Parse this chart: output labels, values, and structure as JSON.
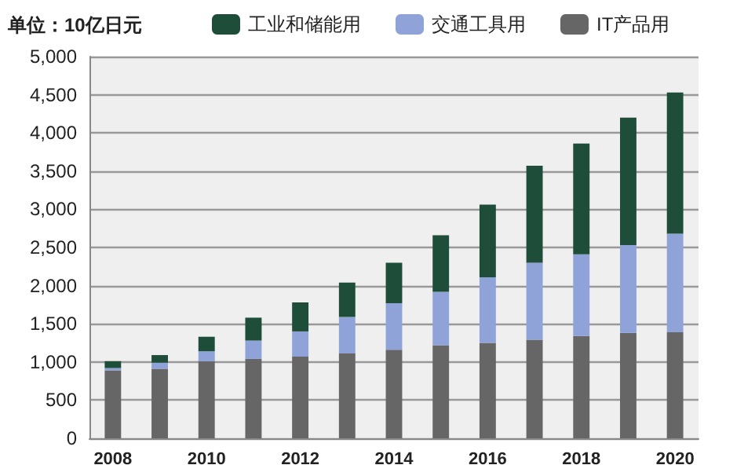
{
  "chart_data": {
    "type": "bar",
    "stacked": true,
    "ylabel": "单位：10亿日元",
    "categories": [
      "2008",
      null,
      "2010",
      null,
      "2012",
      null,
      "2014",
      null,
      "2016",
      null,
      "2018",
      null,
      "2020"
    ],
    "series": [
      {
        "name": "IT产品用",
        "color": "#666666",
        "values": [
          890,
          910,
          1010,
          1040,
          1070,
          1110,
          1160,
          1220,
          1250,
          1290,
          1340,
          1380,
          1390
        ]
      },
      {
        "name": "交通工具用",
        "color": "#8fa3d8",
        "values": [
          30,
          80,
          130,
          240,
          330,
          480,
          610,
          700,
          860,
          1010,
          1070,
          1150,
          1290
        ]
      },
      {
        "name": "工业和储能用",
        "color": "#1e4d3a",
        "values": [
          90,
          100,
          190,
          300,
          380,
          450,
          530,
          740,
          950,
          1270,
          1450,
          1670,
          1850
        ]
      }
    ],
    "ylim": [
      0,
      5000
    ],
    "yticks": [
      0,
      500,
      {
        "value": 1000,
        "label": "1,000"
      },
      {
        "value": 1500,
        "label": "1,500"
      },
      {
        "value": 2000,
        "label": "2,000"
      },
      {
        "value": 2500,
        "label": "2,500"
      },
      {
        "value": 3000,
        "label": "3,000"
      },
      {
        "value": 3500,
        "label": "3,500"
      },
      {
        "value": 4000,
        "label": "4,000"
      },
      {
        "value": 4500,
        "label": "4,500"
      },
      {
        "value": 5000,
        "label": "5,000"
      }
    ],
    "grid": "y",
    "legend": "top"
  }
}
